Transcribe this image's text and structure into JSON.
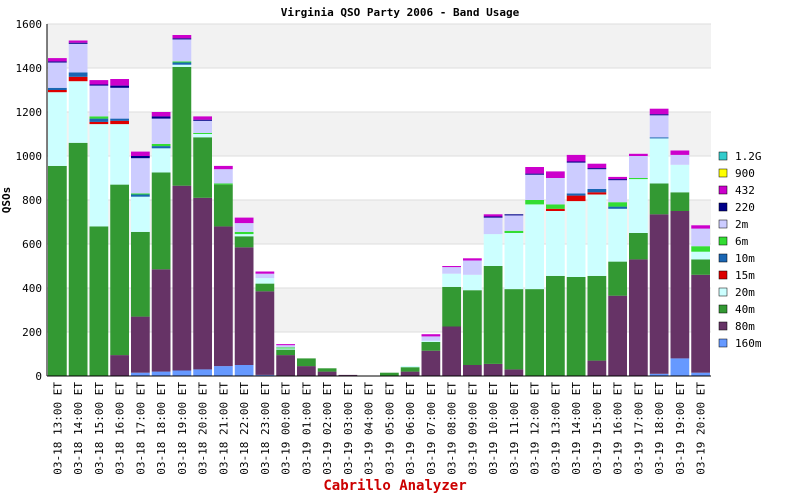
{
  "chart_data": {
    "type": "bar",
    "stacked": true,
    "title": "Virginia QSO Party 2006 - Band Usage",
    "footer": "Cabrillo Analyzer",
    "ylabel": "QSOs",
    "xlabel": "",
    "ylim": [
      0,
      1600
    ],
    "yticks": [
      0,
      200,
      400,
      600,
      800,
      1000,
      1200,
      1400,
      1600
    ],
    "grid": true,
    "legend_position": "right",
    "categories": [
      "03-18 13:00 ET",
      "03-18 14:00 ET",
      "03-18 15:00 ET",
      "03-18 16:00 ET",
      "03-18 17:00 ET",
      "03-18 18:00 ET",
      "03-18 19:00 ET",
      "03-18 20:00 ET",
      "03-18 21:00 ET",
      "03-18 22:00 ET",
      "03-18 23:00 ET",
      "03-19 00:00 ET",
      "03-19 01:00 ET",
      "03-19 02:00 ET",
      "03-19 03:00 ET",
      "03-19 04:00 ET",
      "03-19 05:00 ET",
      "03-19 06:00 ET",
      "03-19 07:00 ET",
      "03-19 08:00 ET",
      "03-19 09:00 ET",
      "03-19 10:00 ET",
      "03-19 11:00 ET",
      "03-19 12:00 ET",
      "03-19 13:00 ET",
      "03-19 14:00 ET",
      "03-19 15:00 ET",
      "03-19 16:00 ET",
      "03-19 17:00 ET",
      "03-19 18:00 ET",
      "03-19 19:00 ET",
      "03-19 20:00 ET"
    ],
    "series": [
      {
        "name": "160m",
        "color": "#6699ff",
        "values": [
          0,
          0,
          0,
          0,
          15,
          20,
          25,
          30,
          45,
          50,
          5,
          0,
          0,
          0,
          0,
          0,
          0,
          0,
          0,
          0,
          0,
          0,
          0,
          0,
          0,
          0,
          0,
          0,
          0,
          10,
          80,
          15
        ]
      },
      {
        "name": "80m",
        "color": "#663366",
        "values": [
          0,
          0,
          0,
          95,
          255,
          465,
          840,
          780,
          635,
          535,
          380,
          95,
          45,
          20,
          5,
          0,
          0,
          20,
          115,
          225,
          50,
          55,
          30,
          0,
          0,
          0,
          70,
          365,
          530,
          725,
          670,
          445
        ]
      },
      {
        "name": "40m",
        "color": "#339933",
        "values": [
          955,
          1060,
          680,
          775,
          385,
          440,
          540,
          275,
          190,
          50,
          35,
          25,
          35,
          15,
          0,
          0,
          15,
          20,
          40,
          180,
          340,
          445,
          365,
          395,
          455,
          450,
          385,
          155,
          120,
          140,
          85,
          70
        ]
      },
      {
        "name": "20m",
        "color": "#ccffff",
        "values": [
          335,
          280,
          465,
          275,
          160,
          110,
          10,
          15,
          0,
          10,
          25,
          5,
          0,
          0,
          0,
          0,
          0,
          5,
          5,
          60,
          70,
          145,
          255,
          385,
          295,
          345,
          370,
          240,
          245,
          205,
          125,
          35
        ]
      },
      {
        "name": "15m",
        "color": "#dd0000",
        "values": [
          10,
          20,
          10,
          15,
          0,
          0,
          0,
          0,
          0,
          0,
          0,
          0,
          0,
          0,
          0,
          0,
          0,
          0,
          0,
          0,
          0,
          0,
          0,
          0,
          10,
          25,
          10,
          0,
          0,
          0,
          0,
          0
        ]
      },
      {
        "name": "10m",
        "color": "#1a66b3",
        "values": [
          10,
          20,
          15,
          10,
          10,
          10,
          10,
          0,
          0,
          0,
          0,
          0,
          0,
          0,
          0,
          0,
          0,
          0,
          0,
          0,
          0,
          0,
          0,
          0,
          0,
          10,
          15,
          10,
          0,
          5,
          0,
          0
        ]
      },
      {
        "name": "6m",
        "color": "#33dd33",
        "values": [
          0,
          0,
          10,
          0,
          5,
          10,
          5,
          5,
          5,
          10,
          0,
          5,
          0,
          0,
          0,
          0,
          0,
          0,
          0,
          0,
          0,
          0,
          10,
          20,
          20,
          0,
          0,
          20,
          5,
          0,
          0,
          25
        ]
      },
      {
        "name": "2m",
        "color": "#ccccff",
        "values": [
          115,
          130,
          140,
          140,
          160,
          115,
          100,
          55,
          65,
          40,
          20,
          10,
          0,
          0,
          0,
          0,
          0,
          0,
          20,
          30,
          65,
          75,
          70,
          115,
          120,
          140,
          90,
          100,
          100,
          100,
          45,
          80
        ]
      },
      {
        "name": "220",
        "color": "#000088",
        "values": [
          5,
          5,
          5,
          10,
          10,
          10,
          5,
          5,
          0,
          0,
          0,
          0,
          0,
          0,
          0,
          0,
          0,
          0,
          0,
          0,
          0,
          5,
          5,
          5,
          0,
          5,
          5,
          5,
          0,
          5,
          0,
          0
        ]
      },
      {
        "name": "432",
        "color": "#cc00cc",
        "values": [
          15,
          10,
          20,
          30,
          20,
          20,
          15,
          15,
          15,
          25,
          10,
          5,
          0,
          0,
          0,
          0,
          0,
          0,
          10,
          5,
          10,
          10,
          0,
          30,
          30,
          30,
          20,
          10,
          10,
          25,
          20,
          15
        ]
      },
      {
        "name": "900",
        "color": "#ffff00",
        "values": [
          0,
          0,
          0,
          0,
          0,
          0,
          0,
          0,
          0,
          0,
          0,
          0,
          0,
          0,
          0,
          0,
          0,
          0,
          0,
          0,
          0,
          0,
          0,
          0,
          0,
          0,
          0,
          0,
          0,
          0,
          0,
          0
        ]
      },
      {
        "name": "1.2G",
        "color": "#33cccc",
        "values": [
          0,
          0,
          0,
          0,
          0,
          0,
          0,
          0,
          0,
          0,
          0,
          0,
          0,
          0,
          0,
          0,
          0,
          0,
          0,
          0,
          0,
          0,
          0,
          0,
          0,
          0,
          0,
          0,
          0,
          0,
          0,
          0
        ]
      }
    ]
  }
}
